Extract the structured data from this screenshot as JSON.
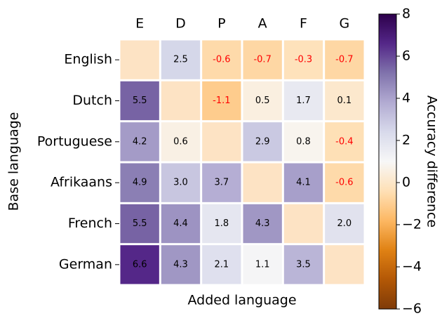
{
  "chart_data": {
    "type": "heatmap",
    "xlabel": "Added language",
    "ylabel": "Base language",
    "columns": [
      "E",
      "D",
      "P",
      "A",
      "F",
      "G"
    ],
    "rows": [
      "English",
      "Dutch",
      "Portuguese",
      "Afrikaans",
      "French",
      "German"
    ],
    "values": [
      [
        null,
        2.5,
        -0.6,
        -0.7,
        -0.3,
        -0.7
      ],
      [
        5.5,
        null,
        -1.1,
        0.5,
        1.7,
        0.1
      ],
      [
        4.2,
        0.6,
        null,
        2.9,
        0.8,
        -0.4
      ],
      [
        4.9,
        3.0,
        3.7,
        null,
        4.1,
        -0.6
      ],
      [
        5.5,
        4.4,
        1.8,
        4.3,
        null,
        2.0
      ],
      [
        6.6,
        4.3,
        2.1,
        1.1,
        3.5,
        null
      ]
    ],
    "value_labels": [
      [
        null,
        "2.5",
        "-0.6",
        "-0.7",
        "-0.3",
        "-0.7"
      ],
      [
        "5.5",
        null,
        "-1.1",
        "0.5",
        "1.7",
        "0.1"
      ],
      [
        "4.2",
        "0.6",
        null,
        "2.9",
        "0.8",
        "-0.4"
      ],
      [
        "4.9",
        "3.0",
        "3.7",
        null,
        "4.1",
        "-0.6"
      ],
      [
        "5.5",
        "4.4",
        "1.8",
        "4.3",
        null,
        "2.0"
      ],
      [
        "6.6",
        "4.3",
        "2.1",
        "1.1",
        "3.5",
        null
      ]
    ],
    "colormap": "PuOr",
    "missing_color": "#fde3c4",
    "negative_label_color": "#ff0000",
    "colorbar_label": "Accuracy difference",
    "zlim": [
      -6,
      8
    ],
    "zticks": [
      {
        "value": -6,
        "label": "−6"
      },
      {
        "value": -4,
        "label": "−4"
      },
      {
        "value": -2,
        "label": "−2"
      },
      0,
      2,
      4,
      6,
      8
    ]
  }
}
